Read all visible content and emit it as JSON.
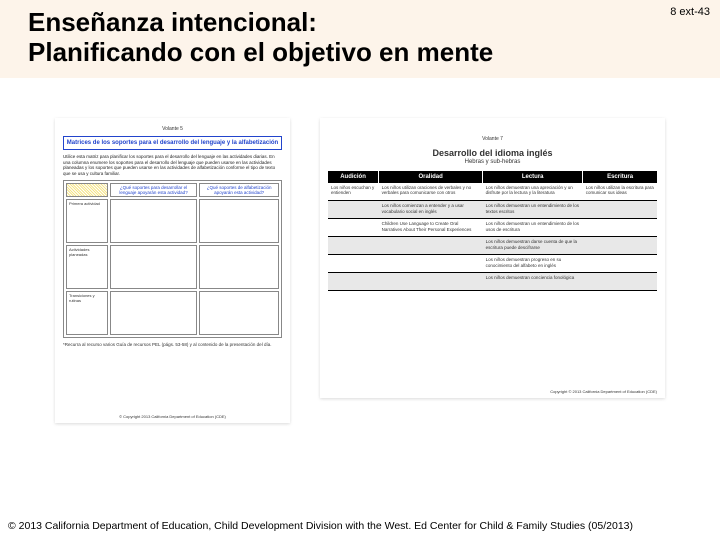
{
  "slide_number": "8 ext-43",
  "title_line1": "Enseñanza intencional:",
  "title_line2": "Planificando con el objetivo en mente",
  "left_doc": {
    "volume": "Volante 5",
    "box_title": "Matrices de los soportes para el desarrollo del lenguaje y la alfabetización",
    "intro": "Utilice esta matriz para planificar los soportes para el desarrollo del lenguaje en las actividades diarias. En una columna enumere los soportes para el desarrollo del lenguaje que pueden usarse en las actividades planeadas y los soportes que pueden usarse en las actividades de alfabetización conforme el tipo de texto que se usa y cultura familiar.",
    "headers": [
      "¿Qué soportes para desarrollar el lenguaje apoyarán esta actividad?",
      "¿Qué soportes de alfabetización apoyarán esta actividad?"
    ],
    "row_labels": [
      "Primera actividad",
      "Actividades planeadas",
      "Transiciones y rutinas"
    ],
    "footer_note": "*Recurra al recurso varios Guía de recursos PEL (págs. 53-58) y al contenido de la presentación del día.",
    "copy": "© Copyright 2013 California Department of Education (CDE)"
  },
  "right_doc": {
    "volume": "Volante 7",
    "title": "Desarrollo del idioma inglés",
    "subtitle": "Hebras y sub-hebras",
    "columns": [
      "Audición",
      "Oralidad",
      "Lectura",
      "Escritura"
    ],
    "rows": [
      [
        "Los niños escuchan y entienden",
        "Los niños utilizan oraciones de verbales y no verbales para comunicarse con otros",
        "Los niños demuestran una apreciación y un disfrute por la lectura y la literatura",
        "Los niños utilizan la escritura para comunicar sus ideas"
      ],
      [
        "",
        "Los niños comienzan a entender y a usar vocabulario social en inglés",
        "Los niños demuestran un entendimiento de los textos escritos",
        ""
      ],
      [
        "",
        "Children Use Language to Create Oral Narratives About Their Personal Experiences",
        "Los niños demuestran un entendimiento de los usos de escritura",
        ""
      ],
      [
        "",
        "",
        "Los niños demuestran darse cuenta de que la escritura puede descifrarse",
        ""
      ],
      [
        "",
        "",
        "Los niños demuestran progreso en su conocimiento del alfabeto en inglés",
        ""
      ],
      [
        "",
        "",
        "Los niños demuestran conciencia fonológica",
        ""
      ]
    ],
    "copy": "Copyright © 2013 California Department of Education (CDE)"
  },
  "footer": "© 2013 California Department of Education, Child Development Division with the West. Ed Center for Child & Family Studies (05/2013)"
}
